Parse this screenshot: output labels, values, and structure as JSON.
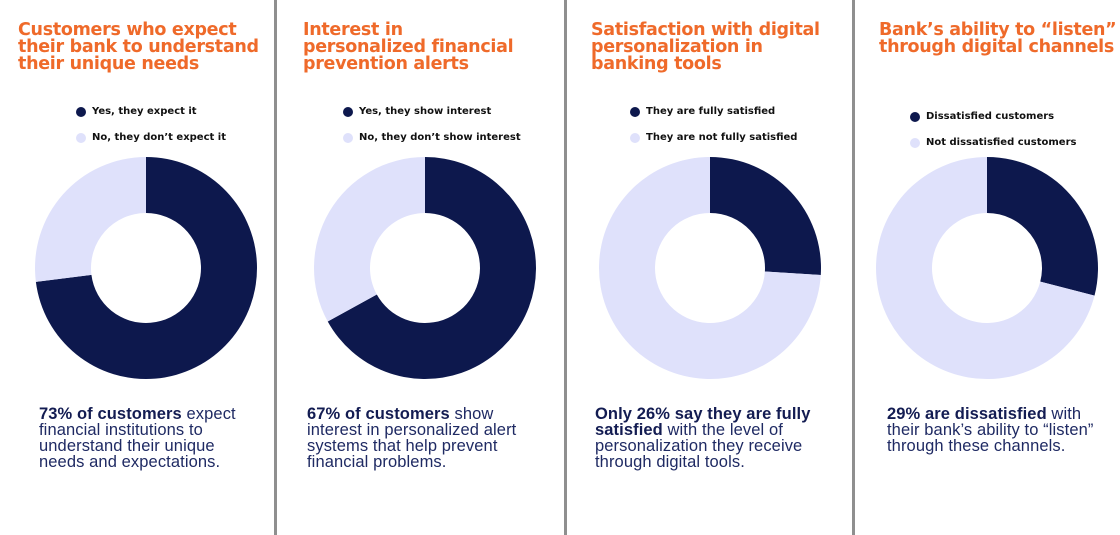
{
  "colors": {
    "accent_title": "#ef6a2a",
    "dark_segment": "#0d184d",
    "light_segment": "#dfe1fb",
    "body_text": "#1f2a63",
    "divider": "#8f8f8f",
    "background": "#ffffff"
  },
  "panels": [
    {
      "title": "Customers who expect\ntheir bank to understand\ntheir unique needs",
      "legend": [
        {
          "label": "Yes, they expect it",
          "color": "#0d184d"
        },
        {
          "label": "No, they don’t expect it",
          "color": "#dfe1fb"
        }
      ],
      "caption_bold": "73% of customers",
      "caption_rest": " expect financial institutions to understand their unique needs and expectations."
    },
    {
      "title": "Interest in\npersonalized financial\nprevention alerts",
      "legend": [
        {
          "label": "Yes, they show interest",
          "color": "#0d184d"
        },
        {
          "label": "No, they don’t show interest",
          "color": "#dfe1fb"
        }
      ],
      "caption_bold": "67% of customers",
      "caption_rest": " show interest in personalized alert systems that help prevent financial problems."
    },
    {
      "title": "Satisfaction with digital\npersonalization in\nbanking tools",
      "legend": [
        {
          "label": "They are fully satisfied",
          "color": "#0d184d"
        },
        {
          "label": "They are not fully satisfied",
          "color": "#dfe1fb"
        }
      ],
      "caption_bold": "Only 26% say they are fully satisfied",
      "caption_rest": " with the level of personalization they receive through digital tools."
    },
    {
      "title": "Bank’s ability to “listen”\nthrough digital channels",
      "legend": [
        {
          "label": "Dissatisfied customers",
          "color": "#0d184d"
        },
        {
          "label": "Not dissatisfied customers",
          "color": "#dfe1fb"
        }
      ],
      "caption_bold": "29% are dissatisfied",
      "caption_rest": " with their bank’s ability to “listen” through these channels."
    }
  ],
  "chart_data": [
    {
      "type": "pie",
      "title": "Customers who expect their bank to understand their unique needs",
      "categories": [
        "Yes, they expect it",
        "No, they don’t expect it"
      ],
      "values": [
        73,
        27
      ],
      "unit": "%",
      "donut": true,
      "legend_position": "top"
    },
    {
      "type": "pie",
      "title": "Interest in personalized financial prevention alerts",
      "categories": [
        "Yes, they show interest",
        "No, they don’t show interest"
      ],
      "values": [
        67,
        33
      ],
      "unit": "%",
      "donut": true,
      "legend_position": "top"
    },
    {
      "type": "pie",
      "title": "Satisfaction with digital personalization in banking tools",
      "categories": [
        "They are fully satisfied",
        "They are not fully satisfied"
      ],
      "values": [
        26,
        74
      ],
      "unit": "%",
      "donut": true,
      "legend_position": "top"
    },
    {
      "type": "pie",
      "title": "Bank’s ability to “listen” through digital channels",
      "categories": [
        "Dissatisfied customers",
        "Not dissatisfied customers"
      ],
      "values": [
        29,
        71
      ],
      "unit": "%",
      "donut": true,
      "legend_position": "top"
    }
  ]
}
